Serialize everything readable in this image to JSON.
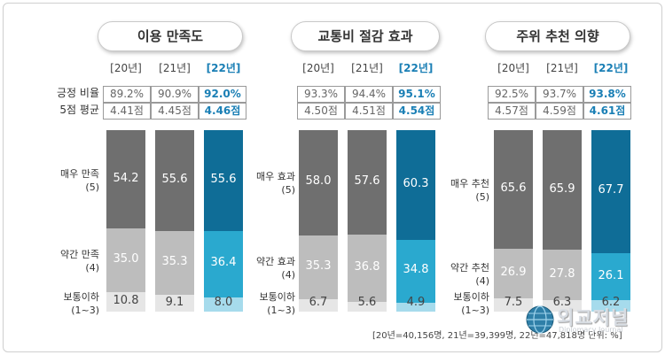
{
  "footnote": "[20년=40,156명, 21년=39,399명, 22년=47,818명 단위: %]",
  "watermark": {
    "main": "외교저널",
    "sub": "Diplomacy Journal"
  },
  "colors": {
    "very_old": "#6f6f6f",
    "very_cur": "#0f6d97",
    "some_old": "#bdbdbd",
    "some_cur": "#2aa9cf",
    "low_old": "#e6e6e6",
    "low_cur": "#a6dbec"
  },
  "chart_data": [
    {
      "type": "bar",
      "stacked": true,
      "title": "이용 만족도",
      "years": [
        "[20년]",
        "[21년]",
        "[22년]"
      ],
      "metrics": [
        {
          "label": "긍정 비율",
          "values": [
            "89.2%",
            "90.9%",
            "92.0%"
          ]
        },
        {
          "label": "5점 평균",
          "values": [
            "4.41점",
            "4.45점",
            "4.46점"
          ]
        }
      ],
      "series": [
        {
          "name": "매우 만족\n(5)",
          "values": [
            54.2,
            55.6,
            55.6
          ]
        },
        {
          "name": "약간 만족\n(4)",
          "values": [
            35.0,
            35.3,
            36.4
          ]
        },
        {
          "name": "보통이하\n(1~3)",
          "values": [
            10.8,
            9.1,
            8.0
          ]
        }
      ]
    },
    {
      "type": "bar",
      "stacked": true,
      "title": "교통비 절감 효과",
      "years": [
        "[20년]",
        "[21년]",
        "[22년]"
      ],
      "metrics": [
        {
          "label": "",
          "values": [
            "93.3%",
            "94.4%",
            "95.1%"
          ]
        },
        {
          "label": "",
          "values": [
            "4.50점",
            "4.51점",
            "4.54점"
          ]
        }
      ],
      "series": [
        {
          "name": "매우 효과\n(5)",
          "values": [
            58.0,
            57.6,
            60.3
          ]
        },
        {
          "name": "약간 효과\n(4)",
          "values": [
            35.3,
            36.8,
            34.8
          ]
        },
        {
          "name": "보통이하\n(1~3)",
          "values": [
            6.7,
            5.6,
            4.9
          ]
        }
      ]
    },
    {
      "type": "bar",
      "stacked": true,
      "title": "주위 추천 의향",
      "years": [
        "[20년]",
        "[21년]",
        "[22년]"
      ],
      "metrics": [
        {
          "label": "",
          "values": [
            "92.5%",
            "93.7%",
            "93.8%"
          ]
        },
        {
          "label": "",
          "values": [
            "4.57점",
            "4.59점",
            "4.61점"
          ]
        }
      ],
      "series": [
        {
          "name": "매우 추천\n(5)",
          "values": [
            65.6,
            65.9,
            67.7
          ]
        },
        {
          "name": "약간 추천\n(4)",
          "values": [
            26.9,
            27.8,
            26.1
          ]
        },
        {
          "name": "보통이하\n(1~3)",
          "values": [
            7.5,
            6.3,
            6.2
          ]
        }
      ]
    }
  ]
}
